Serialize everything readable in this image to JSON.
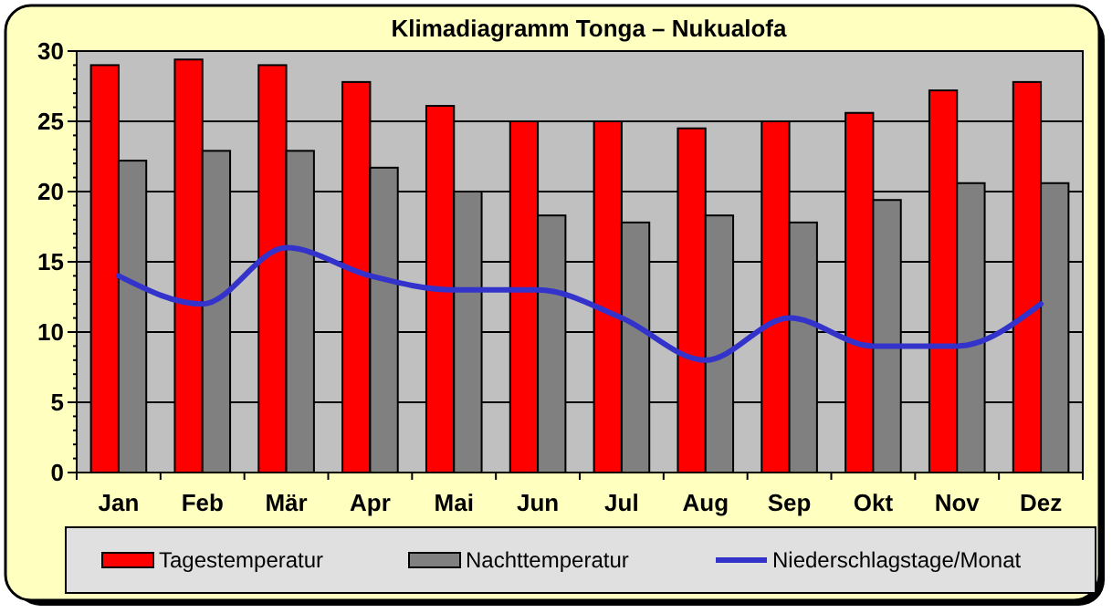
{
  "chart_data": {
    "type": "bar",
    "title": "Klimadiagramm Tonga – Nukualofa",
    "categories": [
      "Jan",
      "Feb",
      "Mär",
      "Apr",
      "Mai",
      "Jun",
      "Jul",
      "Aug",
      "Sep",
      "Okt",
      "Nov",
      "Dez"
    ],
    "series": [
      {
        "name": "Tagestemperatur",
        "color": "#ff0000",
        "values": [
          29,
          29.4,
          29,
          27.8,
          26.1,
          25,
          25,
          24.5,
          25,
          25.6,
          27.2,
          27.8
        ]
      },
      {
        "name": "Nachttemperatur",
        "color": "#808080",
        "values": [
          22.2,
          22.9,
          22.9,
          21.7,
          20,
          18.3,
          17.8,
          18.3,
          17.8,
          19.4,
          20.6,
          20.6
        ]
      },
      {
        "name": "Niederschlagstage/Monat",
        "type": "line",
        "color": "#3333cc",
        "values": [
          14,
          12,
          16,
          14,
          13,
          13,
          11,
          8,
          11,
          9,
          9,
          12
        ]
      }
    ],
    "ylim": [
      0,
      30
    ],
    "yticks": [
      0,
      5,
      10,
      15,
      20,
      25,
      30
    ],
    "grid": "y",
    "legend": "bottom"
  }
}
